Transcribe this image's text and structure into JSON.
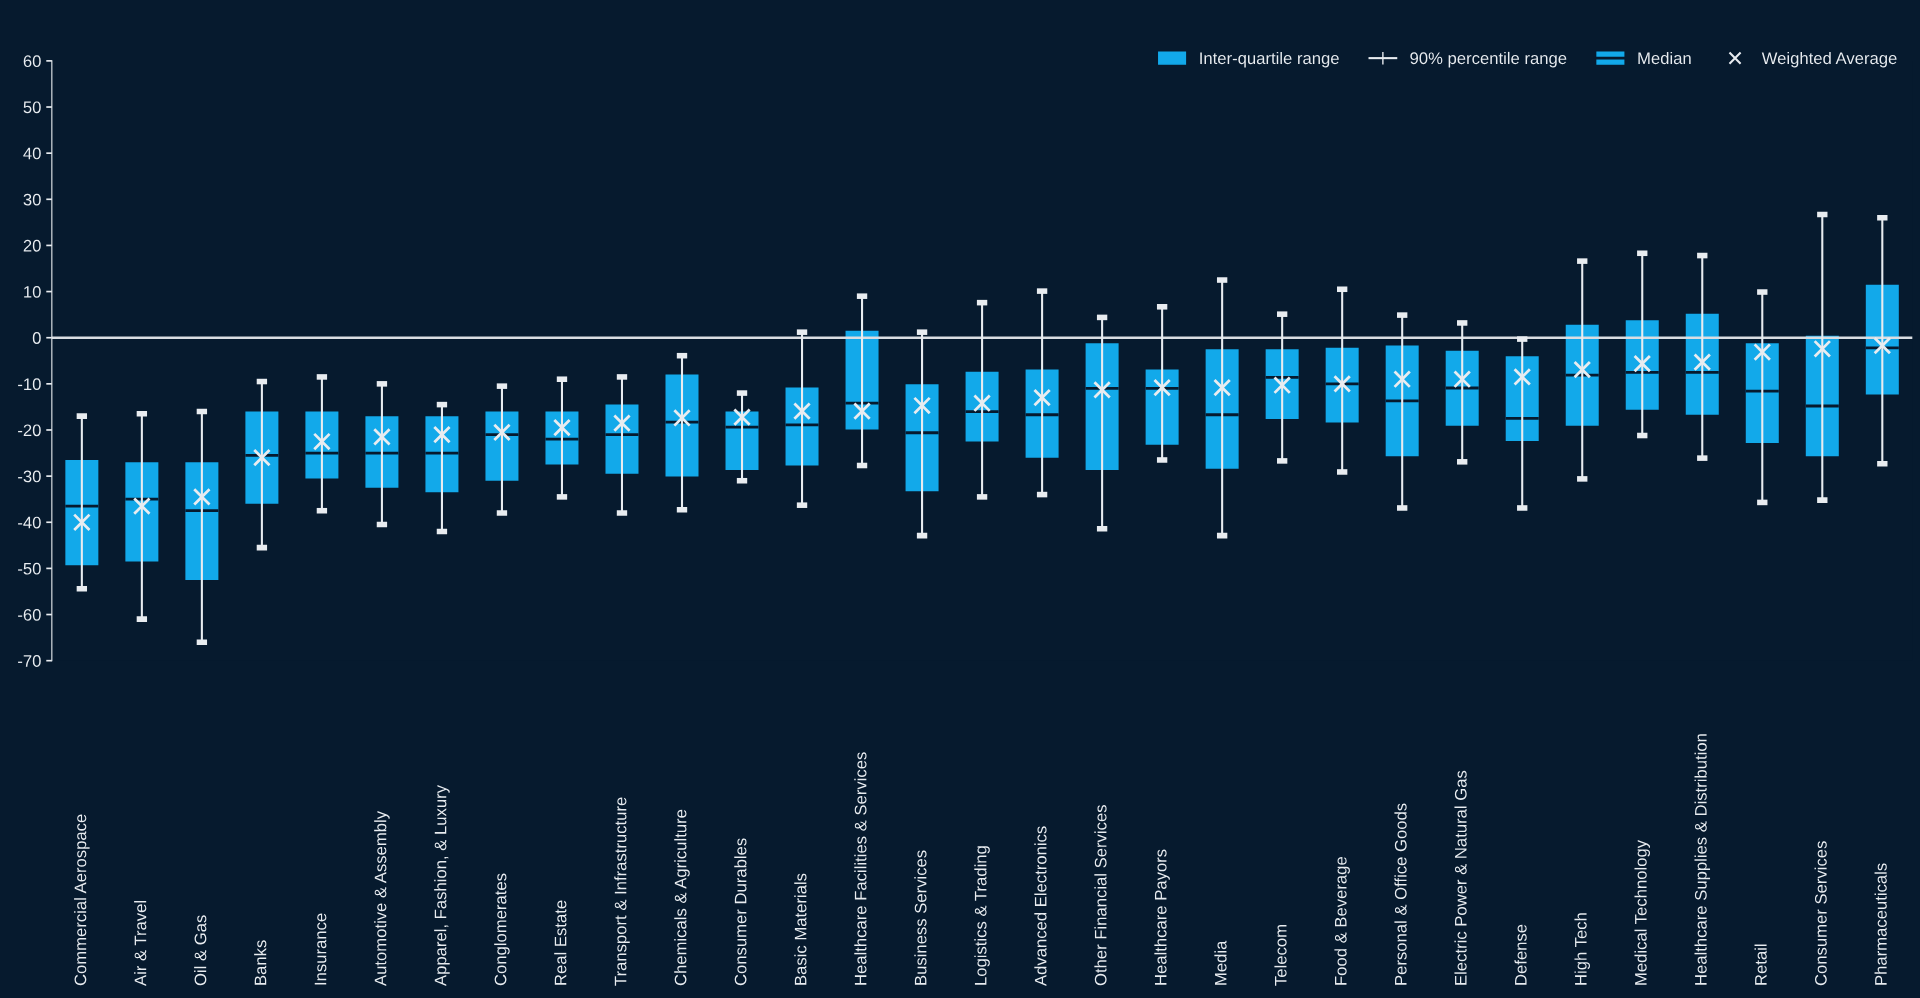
{
  "chart_data": {
    "type": "box",
    "categories": [
      "Commercial Aerospace",
      "Air & Travel",
      "Oil & Gas",
      "Banks",
      "Insurance",
      "Automotive & Assembly",
      "Apparel, Fashion, & Luxury",
      "Conglomerates",
      "Real Estate",
      "Transport & Infrastructure",
      "Chemicals & Agriculture",
      "Consumer Durables",
      "Basic Materials",
      "Healthcare Facilities & Services",
      "Business Services",
      "Logistics & Trading",
      "Advanced Electronics",
      "Other Financial Services",
      "Healthcare Payors",
      "Media",
      "Telecom",
      "Food & Beverage",
      "Personal & Office Goods",
      "Electric Power & Natural Gas",
      "Defense",
      "High Tech",
      "Medical Technology",
      "Healthcare Supplies & Distribution",
      "Retail",
      "Consumer Services",
      "Pharmaceuticals"
    ],
    "series": [
      {
        "name": "Inter-quartile range",
        "color": "#12a9ea",
        "boxes": [
          {
            "low": -54.4,
            "q1": -49.3,
            "median": -36.5,
            "q3": -26.5,
            "high": -17,
            "mean": -40
          },
          {
            "low": -61,
            "q1": -48.5,
            "median": -35,
            "q3": -27,
            "high": -16.5,
            "mean": -36.5
          },
          {
            "low": -66,
            "q1": -52.5,
            "median": -37.5,
            "q3": -27,
            "high": -16,
            "mean": -34.5
          },
          {
            "low": -45.5,
            "q1": -36,
            "median": -25.5,
            "q3": -16,
            "high": -9.5,
            "mean": -26
          },
          {
            "low": -37.5,
            "q1": -30.5,
            "median": -25,
            "q3": -16,
            "high": -8.5,
            "mean": -22.5
          },
          {
            "low": -40.5,
            "q1": -32.5,
            "median": -25,
            "q3": -17,
            "high": -10,
            "mean": -21.5
          },
          {
            "low": -42,
            "q1": -33.5,
            "median": -25,
            "q3": -17,
            "high": -14.5,
            "mean": -21
          },
          {
            "low": -38,
            "q1": -31,
            "median": -21,
            "q3": -16,
            "high": -10.5,
            "mean": -20.5
          },
          {
            "low": -34.5,
            "q1": -27.5,
            "median": -22,
            "q3": -16,
            "high": -9,
            "mean": -19.5
          },
          {
            "low": -38,
            "q1": -29.5,
            "median": -21,
            "q3": -14.5,
            "high": -8.5,
            "mean": -18.5
          },
          {
            "low": -37.3,
            "q1": -30.1,
            "median": -18.3,
            "q3": -8,
            "high": -3.9,
            "mean": -17.4
          },
          {
            "low": -31,
            "q1": -28.7,
            "median": -19.4,
            "q3": -16,
            "high": -12,
            "mean": -17.2
          },
          {
            "low": -36.3,
            "q1": -27.7,
            "median": -18.9,
            "q3": -10.8,
            "high": 1.2,
            "mean": -15.9
          },
          {
            "low": -27.7,
            "q1": -19.9,
            "median": -14.2,
            "q3": 1.5,
            "high": 9,
            "mean": -15.9
          },
          {
            "low": -42.9,
            "q1": -33.3,
            "median": -20.6,
            "q3": -10.1,
            "high": 1.2,
            "mean": -14.7
          },
          {
            "low": -34.5,
            "q1": -22.5,
            "median": -16,
            "q3": -7.4,
            "high": 7.6,
            "mean": -14.2
          },
          {
            "low": -34,
            "q1": -26,
            "median": -16.7,
            "q3": -6.9,
            "high": 10.1,
            "mean": -13
          },
          {
            "low": -41.4,
            "q1": -28.7,
            "median": -11,
            "q3": -1.2,
            "high": 4.4,
            "mean": -11.3
          },
          {
            "low": -26.5,
            "q1": -23.2,
            "median": -11,
            "q3": -6.9,
            "high": 6.7,
            "mean": -10.8
          },
          {
            "low": -42.9,
            "q1": -28.4,
            "median": -16.7,
            "q3": -2.5,
            "high": 12.5,
            "mean": -10.8
          },
          {
            "low": -26.7,
            "q1": -17.6,
            "median": -8.6,
            "q3": -2.5,
            "high": 5.1,
            "mean": -10.3
          },
          {
            "low": -29.1,
            "q1": -18.4,
            "median": -10,
            "q3": -2.2,
            "high": 10.5,
            "mean": -10
          },
          {
            "low": -36.9,
            "q1": -25.7,
            "median": -13.7,
            "q3": -1.7,
            "high": 4.9,
            "mean": -9
          },
          {
            "low": -26.9,
            "q1": -19.1,
            "median": -10.9,
            "q3": -2.8,
            "high": 3.2,
            "mean": -9
          },
          {
            "low": -36.9,
            "q1": -22.4,
            "median": -17.5,
            "q3": -4,
            "high": -0.3,
            "mean": -8.5
          },
          {
            "low": -30.6,
            "q1": -19.1,
            "median": -8.1,
            "q3": 2.8,
            "high": 16.6,
            "mean": -6.9
          },
          {
            "low": -21.2,
            "q1": -15.6,
            "median": -7.5,
            "q3": 3.8,
            "high": 18.3,
            "mean": -5.6
          },
          {
            "low": -26.1,
            "q1": -16.7,
            "median": -7.5,
            "q3": 5.2,
            "high": 17.8,
            "mean": -5.3
          },
          {
            "low": -35.7,
            "q1": -22.8,
            "median": -11.6,
            "q3": -1.2,
            "high": 9.9,
            "mean": -3.1
          },
          {
            "low": -35.2,
            "q1": -25.7,
            "median": -14.8,
            "q3": 0.4,
            "high": 26.7,
            "mean": -2.4
          },
          {
            "low": -27.3,
            "q1": -12.3,
            "median": -2.2,
            "q3": 11.5,
            "high": 26,
            "mean": -1.7
          }
        ]
      }
    ],
    "annotations": [
      "90% percentile range",
      "Median",
      "Weighted Average"
    ],
    "ylim": [
      -70,
      60
    ],
    "yticks": [
      -70,
      -60,
      -50,
      -40,
      -30,
      -20,
      -10,
      0,
      10,
      20,
      30,
      40,
      50,
      60
    ],
    "ref_lines": [
      {
        "axis": "y",
        "value": 0,
        "color": "#d9dde2"
      }
    ],
    "legend": "top right"
  }
}
